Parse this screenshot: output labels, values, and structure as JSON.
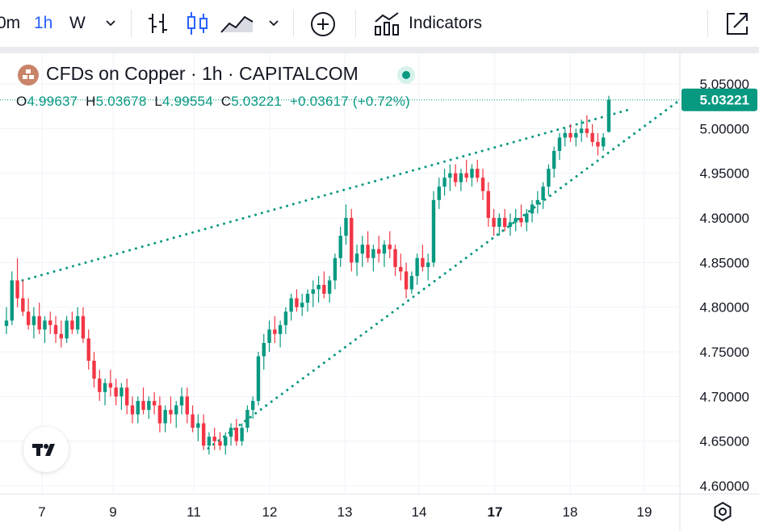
{
  "toolbar": {
    "interval_partial": "0m",
    "interval_active": "1h",
    "interval_w": "W",
    "indicators_label": "Indicators",
    "icons": [
      "chevron-down-icon",
      "bar-style-icon",
      "candles-icon",
      "area-icon",
      "chevron-down-icon",
      "add-compare-icon",
      "indicators-icon",
      "fullscreen-icon"
    ]
  },
  "legend": {
    "symbol_title": "CFDs on Copper · 1h · CAPITALCOM",
    "open_label": "O",
    "open": "4.99637",
    "high_label": "H",
    "high": "5.03678",
    "low_label": "L",
    "low": "4.99554",
    "close_label": "C",
    "close": "5.03221",
    "change": "+0.03617 (+0.72%)"
  },
  "colors": {
    "up": "#089981",
    "down": "#f23645",
    "trendline": "#089981",
    "accent": "#2962ff",
    "grid": "#f0f3fa"
  },
  "chart_data": {
    "type": "candlestick",
    "title": "CFDs on Copper · 1h · CAPITALCOM",
    "y_ticks": [
      "5.05000",
      "5.00000",
      "4.95000",
      "4.90000",
      "4.85000",
      "4.80000",
      "4.75000",
      "4.70000",
      "4.65000",
      "4.60000"
    ],
    "x_ticks": [
      "7",
      "9",
      "11",
      "12",
      "13",
      "14",
      "17",
      "18",
      "19"
    ],
    "last_price": "5.03221",
    "ylim": [
      4.6,
      5.05
    ],
    "grid": true,
    "candles": [
      [
        4.779,
        4.8,
        4.77,
        4.785
      ],
      [
        4.785,
        4.84,
        4.78,
        4.83
      ],
      [
        4.83,
        4.855,
        4.8,
        4.81
      ],
      [
        4.81,
        4.83,
        4.79,
        4.795
      ],
      [
        4.795,
        4.81,
        4.775,
        4.78
      ],
      [
        4.78,
        4.8,
        4.765,
        4.79
      ],
      [
        4.79,
        4.805,
        4.77,
        4.775
      ],
      [
        4.775,
        4.79,
        4.76,
        4.785
      ],
      [
        4.785,
        4.795,
        4.77,
        4.78
      ],
      [
        4.78,
        4.79,
        4.76,
        4.77
      ],
      [
        4.77,
        4.785,
        4.755,
        4.765
      ],
      [
        4.765,
        4.79,
        4.76,
        4.785
      ],
      [
        4.785,
        4.795,
        4.77,
        4.775
      ],
      [
        4.775,
        4.8,
        4.77,
        4.79
      ],
      [
        4.79,
        4.8,
        4.76,
        4.765
      ],
      [
        4.765,
        4.775,
        4.73,
        4.74
      ],
      [
        4.74,
        4.75,
        4.71,
        4.72
      ],
      [
        4.72,
        4.73,
        4.695,
        4.705
      ],
      [
        4.705,
        4.72,
        4.69,
        4.715
      ],
      [
        4.715,
        4.73,
        4.7,
        4.71
      ],
      [
        4.71,
        4.72,
        4.69,
        4.7
      ],
      [
        4.7,
        4.715,
        4.685,
        4.71
      ],
      [
        4.71,
        4.72,
        4.68,
        4.69
      ],
      [
        4.69,
        4.7,
        4.67,
        4.68
      ],
      [
        4.68,
        4.7,
        4.67,
        4.695
      ],
      [
        4.695,
        4.71,
        4.68,
        4.685
      ],
      [
        4.685,
        4.7,
        4.675,
        4.695
      ],
      [
        4.695,
        4.705,
        4.68,
        4.69
      ],
      [
        4.69,
        4.7,
        4.66,
        4.67
      ],
      [
        4.67,
        4.69,
        4.66,
        4.685
      ],
      [
        4.685,
        4.7,
        4.67,
        4.68
      ],
      [
        4.68,
        4.695,
        4.665,
        4.69
      ],
      [
        4.69,
        4.71,
        4.68,
        4.7
      ],
      [
        4.7,
        4.71,
        4.67,
        4.68
      ],
      [
        4.68,
        4.69,
        4.66,
        4.665
      ],
      [
        4.665,
        4.68,
        4.65,
        4.67
      ],
      [
        4.67,
        4.68,
        4.64,
        4.645
      ],
      [
        4.645,
        4.66,
        4.635,
        4.655
      ],
      [
        4.655,
        4.665,
        4.64,
        4.65
      ],
      [
        4.65,
        4.66,
        4.64,
        4.645
      ],
      [
        4.645,
        4.66,
        4.635,
        4.655
      ],
      [
        4.655,
        4.67,
        4.645,
        4.665
      ],
      [
        4.665,
        4.675,
        4.645,
        4.65
      ],
      [
        4.65,
        4.67,
        4.645,
        4.665
      ],
      [
        4.665,
        4.69,
        4.66,
        4.685
      ],
      [
        4.685,
        4.7,
        4.675,
        4.695
      ],
      [
        4.695,
        4.75,
        4.69,
        4.745
      ],
      [
        4.745,
        4.77,
        4.73,
        4.76
      ],
      [
        4.76,
        4.785,
        4.75,
        4.775
      ],
      [
        4.775,
        4.79,
        4.76,
        4.77
      ],
      [
        4.77,
        4.785,
        4.755,
        4.78
      ],
      [
        4.78,
        4.8,
        4.77,
        4.795
      ],
      [
        4.795,
        4.815,
        4.785,
        4.81
      ],
      [
        4.81,
        4.82,
        4.795,
        4.8
      ],
      [
        4.8,
        4.815,
        4.79,
        4.805
      ],
      [
        4.805,
        4.82,
        4.795,
        4.815
      ],
      [
        4.815,
        4.83,
        4.8,
        4.82
      ],
      [
        4.82,
        4.835,
        4.805,
        4.825
      ],
      [
        4.825,
        4.84,
        4.81,
        4.815
      ],
      [
        4.815,
        4.835,
        4.805,
        4.83
      ],
      [
        4.83,
        4.86,
        4.82,
        4.855
      ],
      [
        4.855,
        4.89,
        4.845,
        4.88
      ],
      [
        4.88,
        4.915,
        4.87,
        4.9
      ],
      [
        4.9,
        4.91,
        4.84,
        4.85
      ],
      [
        4.85,
        4.87,
        4.835,
        4.86
      ],
      [
        4.86,
        4.88,
        4.845,
        4.87
      ],
      [
        4.87,
        4.885,
        4.85,
        4.855
      ],
      [
        4.855,
        4.87,
        4.84,
        4.865
      ],
      [
        4.865,
        4.88,
        4.85,
        4.86
      ],
      [
        4.86,
        4.875,
        4.845,
        4.87
      ],
      [
        4.87,
        4.885,
        4.855,
        4.865
      ],
      [
        4.865,
        4.87,
        4.835,
        4.845
      ],
      [
        4.845,
        4.86,
        4.83,
        4.84
      ],
      [
        4.84,
        4.85,
        4.81,
        4.82
      ],
      [
        4.82,
        4.84,
        4.815,
        4.835
      ],
      [
        4.835,
        4.86,
        4.825,
        4.855
      ],
      [
        4.855,
        4.87,
        4.84,
        4.845
      ],
      [
        4.845,
        4.86,
        4.83,
        4.85
      ],
      [
        4.85,
        4.93,
        4.845,
        4.92
      ],
      [
        4.92,
        4.945,
        4.91,
        4.935
      ],
      [
        4.935,
        4.955,
        4.925,
        4.945
      ],
      [
        4.945,
        4.96,
        4.93,
        4.95
      ],
      [
        4.95,
        4.96,
        4.935,
        4.94
      ],
      [
        4.94,
        4.955,
        4.93,
        4.95
      ],
      [
        4.95,
        4.965,
        4.94,
        4.945
      ],
      [
        4.945,
        4.96,
        4.935,
        4.955
      ],
      [
        4.955,
        4.965,
        4.94,
        4.945
      ],
      [
        4.945,
        4.955,
        4.92,
        4.93
      ],
      [
        4.93,
        4.94,
        4.89,
        4.9
      ],
      [
        4.9,
        4.91,
        4.88,
        4.89
      ],
      [
        4.89,
        4.905,
        4.88,
        4.9
      ],
      [
        4.9,
        4.91,
        4.885,
        4.89
      ],
      [
        4.89,
        4.905,
        4.88,
        4.895
      ],
      [
        4.895,
        4.91,
        4.885,
        4.9
      ],
      [
        4.9,
        4.915,
        4.89,
        4.895
      ],
      [
        4.895,
        4.91,
        4.885,
        4.905
      ],
      [
        4.905,
        4.92,
        4.895,
        4.915
      ],
      [
        4.915,
        4.93,
        4.905,
        4.92
      ],
      [
        4.92,
        4.94,
        4.91,
        4.935
      ],
      [
        4.935,
        4.96,
        4.925,
        4.955
      ],
      [
        4.955,
        4.98,
        4.945,
        4.975
      ],
      [
        4.975,
        4.995,
        4.965,
        4.99
      ],
      [
        4.99,
        5.0,
        4.98,
        4.995
      ],
      [
        4.995,
        5.005,
        4.985,
        4.99
      ],
      [
        4.99,
        5.0,
        4.98,
        4.995
      ],
      [
        4.995,
        5.01,
        4.985,
        5.0
      ],
      [
        5.0,
        5.015,
        4.99,
        4.995
      ],
      [
        4.995,
        5.005,
        4.98,
        4.985
      ],
      [
        4.985,
        4.995,
        4.97,
        4.98
      ],
      [
        4.98,
        4.995,
        4.975,
        4.99
      ],
      [
        4.99637,
        5.03678,
        4.99554,
        5.03221
      ]
    ],
    "trendlines": [
      {
        "name": "upper",
        "from": [
          4.83
        ],
        "to": [
          5.02
        ]
      },
      {
        "name": "lower",
        "from": [
          4.64
        ],
        "to": [
          5.03
        ]
      }
    ]
  }
}
